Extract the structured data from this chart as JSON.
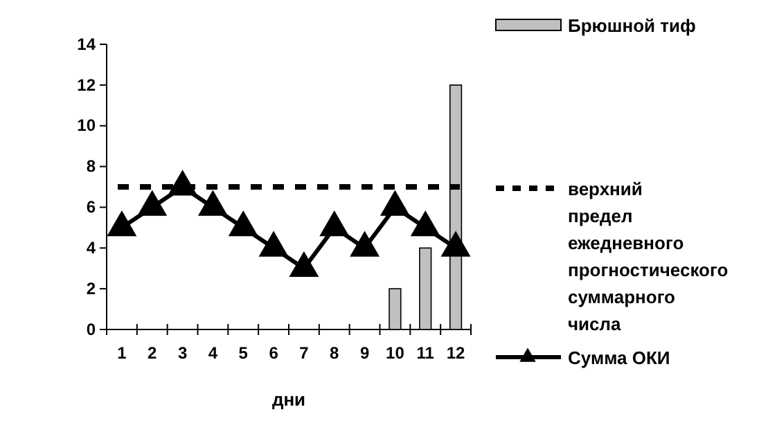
{
  "chart_data": {
    "type": "bar",
    "xlabel": "дни",
    "categories": [
      "1",
      "2",
      "3",
      "4",
      "5",
      "6",
      "7",
      "8",
      "9",
      "10",
      "11",
      "12"
    ],
    "series": [
      {
        "name": "Брюшной тиф",
        "color": "#c0c0c0",
        "values": [
          null,
          null,
          null,
          null,
          null,
          null,
          null,
          null,
          null,
          2,
          4,
          12
        ]
      },
      {
        "name": "Сумма ОКИ",
        "type": "line",
        "color": "#000000",
        "marker": "triangle",
        "line_style": "solid",
        "values": [
          5,
          6,
          7,
          6,
          5,
          4,
          3,
          5,
          4,
          6,
          5,
          4
        ]
      }
    ],
    "ref_lines": [
      {
        "axis": "y",
        "value": 7,
        "label": "верхний предел ежедневного прогностического суммарного числа",
        "color": "#000000",
        "line_style": "dashed"
      }
    ],
    "ylim": [
      0,
      14
    ],
    "yticks": [
      0,
      2,
      4,
      6,
      8,
      10,
      12,
      14
    ],
    "grid": false,
    "legend": "right"
  }
}
